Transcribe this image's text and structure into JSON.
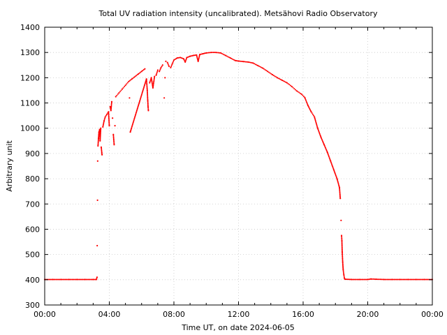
{
  "chart_data": {
    "type": "scatter",
    "title": "Total UV radiation intensity (uncalibrated). Metsähovi Radio Observatory",
    "xlabel": "Time UT, on date 2024-06-05",
    "ylabel": "Arbitrary unit",
    "xlim": [
      0,
      24
    ],
    "ylim": [
      300,
      1400
    ],
    "x_ticks": [
      {
        "value": 0,
        "label": "00:00"
      },
      {
        "value": 4,
        "label": "04:00"
      },
      {
        "value": 8,
        "label": "08:00"
      },
      {
        "value": 12,
        "label": "12:00"
      },
      {
        "value": 16,
        "label": "16:00"
      },
      {
        "value": 20,
        "label": "20:00"
      },
      {
        "value": 24,
        "label": "00:00"
      }
    ],
    "y_ticks": [
      300,
      400,
      500,
      600,
      700,
      800,
      900,
      1000,
      1100,
      1200,
      1300,
      1400
    ],
    "grid": true,
    "series": [
      {
        "color": "#ff0000",
        "points": [
          [
            0.0,
            401
          ],
          [
            0.5,
            401
          ],
          [
            1.0,
            401
          ],
          [
            1.5,
            401
          ],
          [
            2.0,
            401
          ],
          [
            2.5,
            401
          ],
          [
            3.0,
            401
          ],
          [
            3.2,
            401
          ],
          [
            3.24,
            410
          ],
          [
            3.25,
            535
          ],
          [
            3.27,
            715
          ],
          [
            3.28,
            870
          ],
          [
            3.3,
            930
          ],
          [
            3.33,
            960
          ],
          [
            3.36,
            985
          ],
          [
            3.4,
            995
          ],
          [
            3.43,
            950
          ],
          [
            3.47,
            1000
          ],
          [
            3.5,
            925
          ],
          [
            3.55,
            895
          ],
          [
            3.6,
            1005
          ],
          [
            3.68,
            1030
          ],
          [
            3.75,
            1045
          ],
          [
            3.85,
            1055
          ],
          [
            3.95,
            1065
          ],
          [
            4.0,
            1010
          ],
          [
            4.05,
            1085
          ],
          [
            4.1,
            1070
          ],
          [
            4.15,
            1105
          ],
          [
            4.2,
            1040
          ],
          [
            4.25,
            975
          ],
          [
            4.3,
            935
          ],
          [
            4.35,
            1010
          ],
          [
            4.4,
            1125
          ],
          [
            4.6,
            1140
          ],
          [
            4.8,
            1155
          ],
          [
            5.0,
            1170
          ],
          [
            5.2,
            1185
          ],
          [
            5.4,
            1195
          ],
          [
            5.6,
            1205
          ],
          [
            5.8,
            1215
          ],
          [
            6.0,
            1225
          ],
          [
            6.2,
            1235
          ],
          [
            5.25,
            1120
          ],
          [
            5.3,
            985
          ],
          [
            6.3,
            1195
          ],
          [
            6.35,
            1150
          ],
          [
            6.38,
            1110
          ],
          [
            6.4,
            1085
          ],
          [
            6.42,
            1070
          ],
          [
            6.5,
            1180
          ],
          [
            6.6,
            1200
          ],
          [
            6.7,
            1160
          ],
          [
            6.8,
            1205
          ],
          [
            6.9,
            1210
          ],
          [
            7.0,
            1230
          ],
          [
            7.1,
            1225
          ],
          [
            7.2,
            1240
          ],
          [
            7.3,
            1250
          ],
          [
            7.4,
            1120
          ],
          [
            7.45,
            1200
          ],
          [
            7.5,
            1265
          ],
          [
            7.6,
            1260
          ],
          [
            7.7,
            1245
          ],
          [
            7.8,
            1240
          ],
          [
            7.9,
            1255
          ],
          [
            8.0,
            1270
          ],
          [
            8.2,
            1278
          ],
          [
            8.4,
            1280
          ],
          [
            8.6,
            1275
          ],
          [
            8.7,
            1262
          ],
          [
            8.8,
            1280
          ],
          [
            9.0,
            1285
          ],
          [
            9.2,
            1288
          ],
          [
            9.4,
            1290
          ],
          [
            9.5,
            1265
          ],
          [
            9.6,
            1292
          ],
          [
            9.8,
            1295
          ],
          [
            10.0,
            1298
          ],
          [
            10.3,
            1300
          ],
          [
            10.6,
            1300
          ],
          [
            10.9,
            1298
          ],
          [
            11.2,
            1288
          ],
          [
            11.5,
            1278
          ],
          [
            11.8,
            1268
          ],
          [
            12.0,
            1266
          ],
          [
            12.3,
            1264
          ],
          [
            12.6,
            1262
          ],
          [
            12.9,
            1258
          ],
          [
            13.2,
            1248
          ],
          [
            13.5,
            1238
          ],
          [
            13.8,
            1225
          ],
          [
            14.1,
            1212
          ],
          [
            14.4,
            1200
          ],
          [
            14.7,
            1190
          ],
          [
            15.0,
            1180
          ],
          [
            15.3,
            1165
          ],
          [
            15.6,
            1148
          ],
          [
            15.9,
            1135
          ],
          [
            16.1,
            1122
          ],
          [
            16.3,
            1090
          ],
          [
            16.5,
            1065
          ],
          [
            16.7,
            1045
          ],
          [
            16.9,
            1000
          ],
          [
            17.1,
            965
          ],
          [
            17.3,
            935
          ],
          [
            17.5,
            905
          ],
          [
            17.7,
            870
          ],
          [
            17.9,
            835
          ],
          [
            18.1,
            800
          ],
          [
            18.25,
            765
          ],
          [
            18.3,
            722
          ],
          [
            18.35,
            635
          ],
          [
            18.38,
            575
          ],
          [
            18.4,
            555
          ],
          [
            18.42,
            510
          ],
          [
            18.45,
            470
          ],
          [
            18.48,
            440
          ],
          [
            18.52,
            420
          ],
          [
            18.56,
            405
          ],
          [
            18.6,
            402
          ],
          [
            19.0,
            401
          ],
          [
            19.5,
            401
          ],
          [
            20.0,
            401
          ],
          [
            20.2,
            403
          ],
          [
            20.5,
            402
          ],
          [
            21.0,
            401
          ],
          [
            21.5,
            401
          ],
          [
            22.0,
            401
          ],
          [
            22.5,
            401
          ],
          [
            23.0,
            401
          ],
          [
            23.5,
            401
          ],
          [
            24.0,
            401
          ]
        ]
      }
    ]
  }
}
